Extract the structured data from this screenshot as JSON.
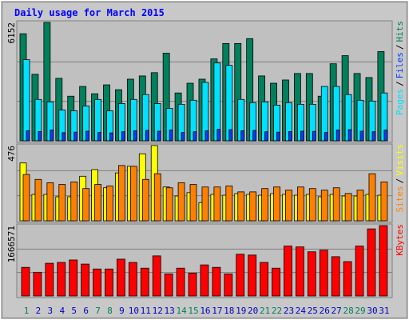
{
  "legend_separator": "/",
  "chart_data": [
    {
      "type": "bar",
      "title": "Daily usage for March 2015",
      "series": [
        {
          "name": "Pages",
          "color": "#00e0ff",
          "values": [
            4214,
            2149,
            2023,
            1601,
            1559,
            1812,
            2149,
            1559,
            1938,
            2149,
            2402,
            1938,
            1685,
            1896,
            2107,
            3034,
            4045,
            3919,
            2149,
            1980,
            2023,
            1854,
            1980,
            1896,
            1896,
            2823,
            2823,
            2402,
            2107,
            2065,
            2486
          ]
        },
        {
          "name": "Files",
          "color": "#0040ff",
          "values": [
            520,
            480,
            560,
            420,
            450,
            500,
            430,
            410,
            470,
            520,
            540,
            500,
            560,
            430,
            470,
            520,
            600,
            580,
            520,
            540,
            470,
            450,
            480,
            500,
            490,
            430,
            560,
            580,
            500,
            470,
            560
          ]
        },
        {
          "name": "Hits",
          "color": "#00805c",
          "values": [
            5562,
            3455,
            6152,
            3245,
            2318,
            2823,
            2444,
            2907,
            2655,
            3202,
            3371,
            3540,
            4551,
            2486,
            2992,
            3202,
            4256,
            5056,
            5056,
            5309,
            3371,
            2992,
            3160,
            3497,
            3497,
            2318,
            4003,
            4424,
            3497,
            3287,
            4635
          ]
        }
      ],
      "ylim": [
        0,
        6152
      ],
      "yticks": [
        6152
      ],
      "grid": true
    },
    {
      "type": "bar",
      "series": [
        {
          "name": "Sites",
          "color": "#ff8000",
          "values": [
            293,
            262,
            241,
            230,
            246,
            204,
            230,
            220,
            350,
            345,
            262,
            298,
            209,
            241,
            230,
            214,
            214,
            220,
            183,
            183,
            204,
            214,
            194,
            214,
            204,
            194,
            209,
            173,
            194,
            298,
            246
          ]
        },
        {
          "name": "Visits",
          "color": "#ffff00",
          "values": [
            366,
            167,
            167,
            152,
            152,
            282,
            324,
            209,
            303,
            345,
            424,
            476,
            214,
            157,
            178,
            115,
            167,
            162,
            172,
            167,
            162,
            172,
            167,
            162,
            167,
            152,
            167,
            157,
            157,
            167,
            162
          ]
        }
      ],
      "ylim": [
        0,
        476
      ],
      "yticks": [
        476
      ],
      "grid": true
    },
    {
      "type": "bar",
      "categories": [
        "1",
        "2",
        "3",
        "4",
        "5",
        "6",
        "7",
        "8",
        "9",
        "10",
        "11",
        "12",
        "13",
        "14",
        "15",
        "16",
        "17",
        "18",
        "19",
        "20",
        "21",
        "22",
        "23",
        "24",
        "25",
        "26",
        "27",
        "28",
        "29",
        "30",
        "31"
      ],
      "category_colors": [
        "#00805c",
        "#0000c0",
        "#0000c0",
        "#0000c0",
        "#0000c0",
        "#0000c0",
        "#00805c",
        "#00805c",
        "#0000c0",
        "#0000c0",
        "#0000c0",
        "#0000c0",
        "#0000c0",
        "#00805c",
        "#00805c",
        "#0000c0",
        "#0000c0",
        "#0000c0",
        "#0000c0",
        "#0000c0",
        "#00805c",
        "#00805c",
        "#0000c0",
        "#0000c0",
        "#0000c0",
        "#0000c0",
        "#0000c0",
        "#00805c",
        "#00805c",
        "#0000c0",
        "#0000c0"
      ],
      "series": [
        {
          "name": "KBytes",
          "color": "#ff0000",
          "values": [
            678256,
            561984,
            775149,
            794528,
            852664,
            755770,
            639497,
            639497,
            872043,
            794528,
            658876,
            949558,
            523226,
            658876,
            542605,
            736391,
            678256,
            523226,
            988316,
            968937,
            794528,
            658876,
            1182103,
            1162724,
            1046451,
            1085209,
            930179,
            813907,
            1182103,
            1589056,
            1666571
          ]
        }
      ],
      "ylim": [
        0,
        1666571
      ],
      "yticks": [
        1666571
      ],
      "grid": true
    }
  ]
}
